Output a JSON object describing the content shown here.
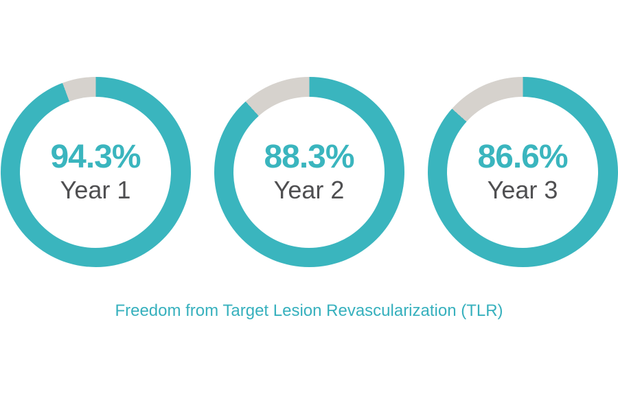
{
  "page": {
    "background": "#ffffff"
  },
  "chart_data": {
    "type": "pie",
    "subtype": "donut",
    "title": "Freedom from Target Lesion Revascularization (TLR)",
    "unit": "%",
    "direction": "clockwise",
    "start_angle_deg": 0,
    "legend_position": "none",
    "items": [
      {
        "label": "Year 1",
        "value": 94.3,
        "value_label": "94.3%"
      },
      {
        "label": "Year 2",
        "value": 88.3,
        "value_label": "88.3%"
      },
      {
        "label": "Year 3",
        "value": 86.6,
        "value_label": "86.6%"
      }
    ],
    "colors": {
      "filled": "#3ab5be",
      "remainder": "#d6d2cd",
      "value_text": "#3ab5be",
      "label_text": "#4f4f51",
      "title_text": "#36b0bd"
    }
  }
}
